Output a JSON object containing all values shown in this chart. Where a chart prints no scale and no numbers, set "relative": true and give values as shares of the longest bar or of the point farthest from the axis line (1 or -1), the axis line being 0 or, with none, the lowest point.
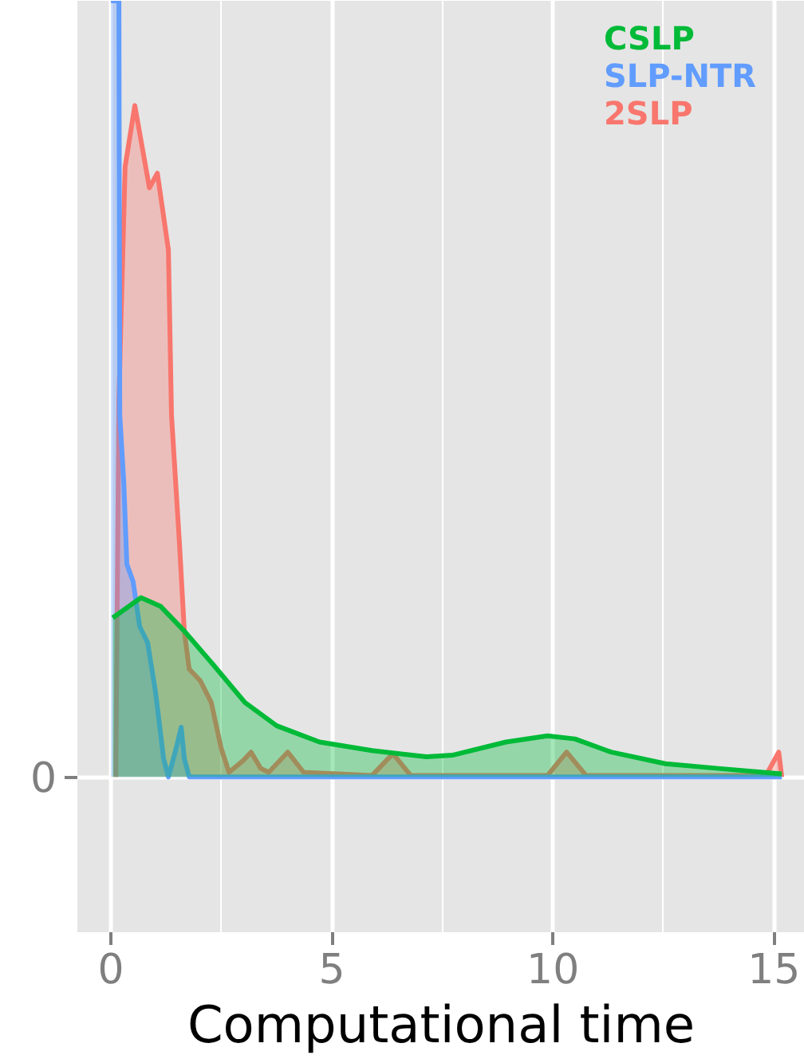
{
  "chart_data": {
    "type": "area",
    "relative": true,
    "xlabel": "Computational time",
    "xlim": [
      -0.76,
      15.7
    ],
    "xticks": [
      0,
      5,
      10,
      15
    ],
    "annotations": [
      "0"
    ],
    "grid": true,
    "legend": "top right",
    "series": [
      {
        "name": "CSLP",
        "color": "#00ba38",
        "x": [
          0.04,
          0.68,
          1.12,
          1.66,
          2.31,
          3.03,
          3.75,
          4.72,
          5.91,
          7.14,
          7.72,
          8.94,
          9.88,
          10.5,
          11.32,
          12.55,
          13.74,
          15.18
        ],
        "values": [
          0.205,
          0.231,
          0.22,
          0.188,
          0.145,
          0.096,
          0.066,
          0.045,
          0.034,
          0.026,
          0.028,
          0.045,
          0.053,
          0.049,
          0.032,
          0.017,
          0.011,
          0.004
        ]
      },
      {
        "name": "SLP-NTR",
        "color": "#619cff",
        "x": [
          0.0,
          0.18,
          0.2,
          0.29,
          0.36,
          0.5,
          0.65,
          0.83,
          1.01,
          1.19,
          1.3,
          1.48,
          1.59,
          1.66,
          1.77,
          15.18
        ],
        "values": [
          1.0,
          1.0,
          0.466,
          0.38,
          0.274,
          0.252,
          0.194,
          0.173,
          0.109,
          0.024,
          0,
          0.038,
          0.064,
          0.024,
          0,
          0
        ]
      },
      {
        "name": "2SLP",
        "color": "#f8766d",
        "x": [
          0.11,
          0.18,
          0.32,
          0.54,
          0.87,
          1.05,
          1.3,
          1.37,
          1.55,
          1.66,
          1.77,
          2.02,
          2.27,
          2.49,
          2.67,
          2.99,
          3.17,
          3.39,
          3.57,
          4.0,
          4.36,
          5.91,
          6.38,
          6.78,
          9.88,
          10.31,
          10.75,
          14.82,
          15.11,
          15.18
        ],
        "values": [
          0,
          0.487,
          0.786,
          0.865,
          0.759,
          0.778,
          0.679,
          0.466,
          0.301,
          0.188,
          0.139,
          0.124,
          0.096,
          0.038,
          0.006,
          0.021,
          0.032,
          0.011,
          0.006,
          0.032,
          0.006,
          0.002,
          0.03,
          0.002,
          0.002,
          0.032,
          0.002,
          0.002,
          0.032,
          0
        ]
      }
    ]
  }
}
